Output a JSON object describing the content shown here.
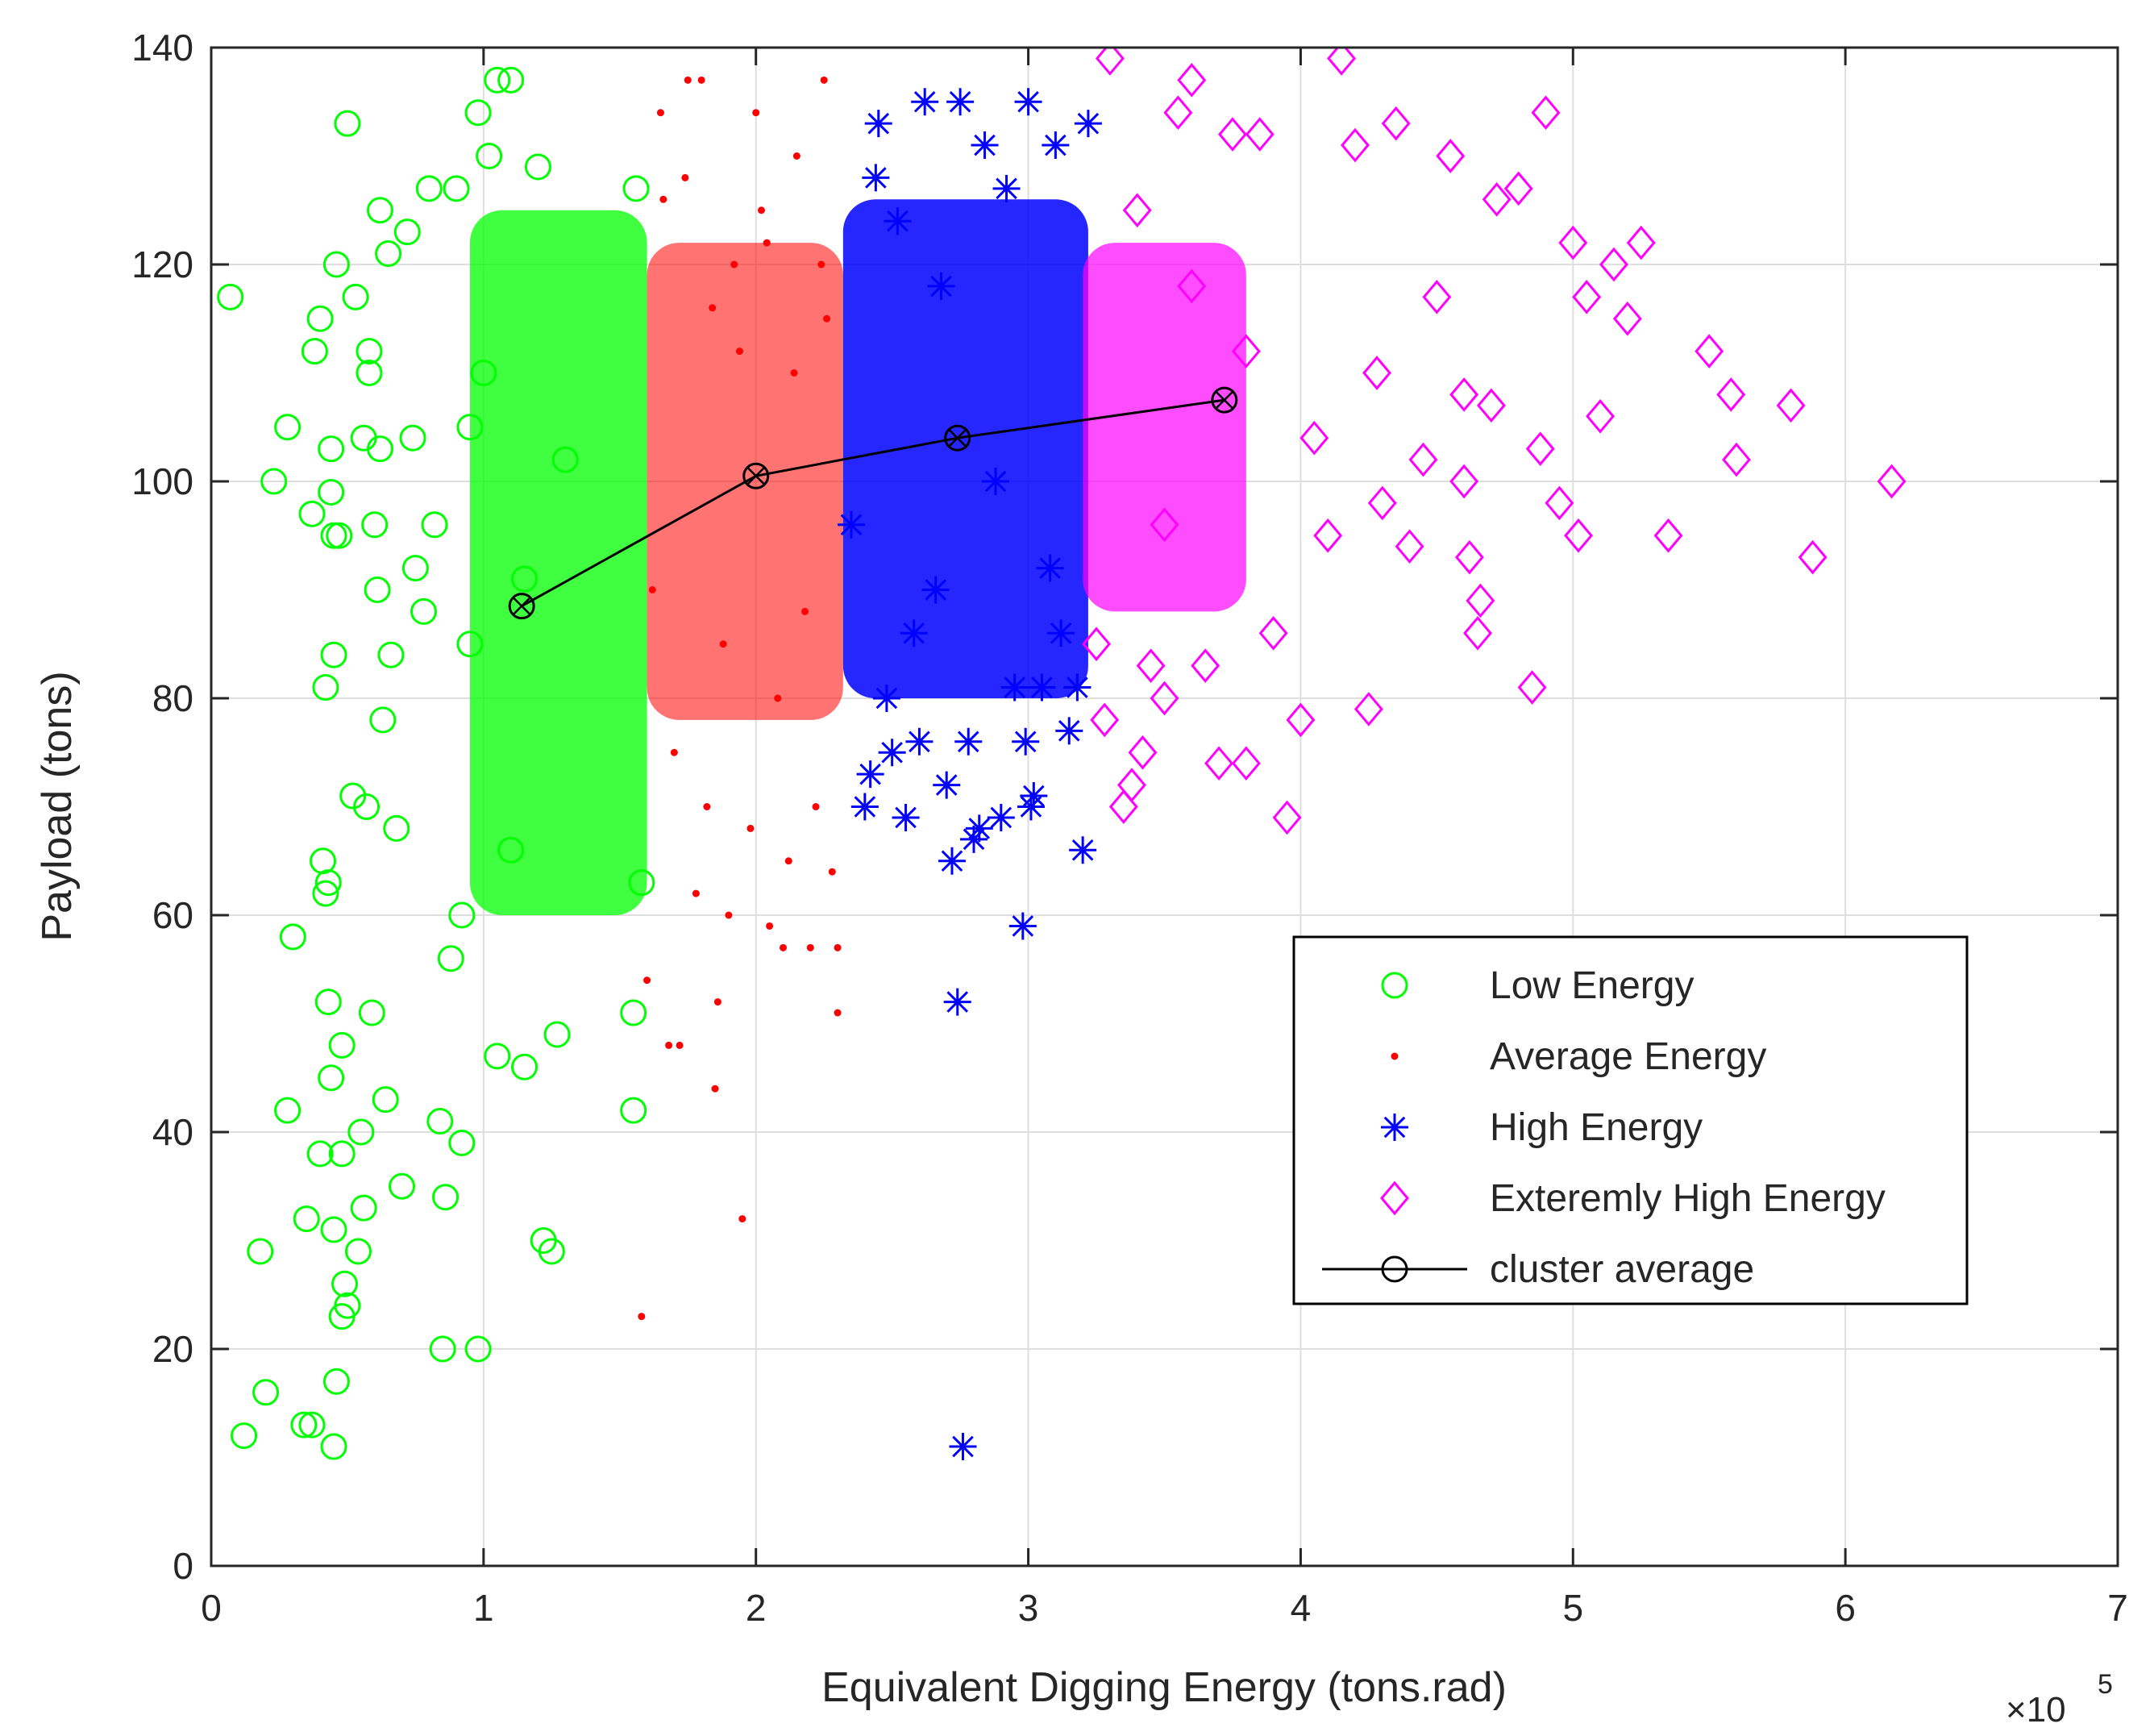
{
  "chart_data": {
    "type": "scatter",
    "title": "",
    "xlabel": "Equivalent Digging Energy (tons.rad)",
    "ylabel": "Payload (tons)",
    "x_multiplier_label": "×10",
    "x_multiplier_exponent": "5",
    "xlim": [
      0,
      7
    ],
    "ylim": [
      0,
      140
    ],
    "xticks": [
      0,
      1,
      2,
      3,
      4,
      5,
      6,
      7
    ],
    "yticks": [
      0,
      20,
      40,
      60,
      80,
      100,
      120,
      140
    ],
    "xtick_labels": [
      "0",
      "1",
      "2",
      "3",
      "4",
      "5",
      "6",
      "7"
    ],
    "ytick_labels": [
      "0",
      "20",
      "40",
      "60",
      "80",
      "100",
      "120",
      "140"
    ],
    "grid": true,
    "legend_position": "lower-right",
    "series": [
      {
        "name": "Low Energy",
        "marker": "circle",
        "color": "#00ff00",
        "points": [
          [
            0.07,
            117
          ],
          [
            0.12,
            12
          ],
          [
            0.18,
            29
          ],
          [
            0.2,
            16
          ],
          [
            0.23,
            100
          ],
          [
            0.28,
            105
          ],
          [
            0.28,
            42
          ],
          [
            0.3,
            58
          ],
          [
            0.34,
            13
          ],
          [
            0.35,
            32
          ],
          [
            0.37,
            97
          ],
          [
            0.37,
            13
          ],
          [
            0.38,
            112
          ],
          [
            0.4,
            115
          ],
          [
            0.4,
            38
          ],
          [
            0.41,
            65
          ],
          [
            0.42,
            81
          ],
          [
            0.42,
            62
          ],
          [
            0.43,
            63
          ],
          [
            0.43,
            52
          ],
          [
            0.44,
            103
          ],
          [
            0.44,
            99
          ],
          [
            0.44,
            45
          ],
          [
            0.45,
            84
          ],
          [
            0.45,
            95
          ],
          [
            0.45,
            11
          ],
          [
            0.45,
            31
          ],
          [
            0.46,
            120
          ],
          [
            0.46,
            17
          ],
          [
            0.47,
            95
          ],
          [
            0.48,
            23
          ],
          [
            0.48,
            38
          ],
          [
            0.48,
            48
          ],
          [
            0.49,
            26
          ],
          [
            0.5,
            133
          ],
          [
            0.5,
            24
          ],
          [
            0.52,
            71
          ],
          [
            0.53,
            117
          ],
          [
            0.54,
            29
          ],
          [
            0.55,
            40
          ],
          [
            0.56,
            33
          ],
          [
            0.56,
            104
          ],
          [
            0.57,
            70
          ],
          [
            0.58,
            112
          ],
          [
            0.58,
            110
          ],
          [
            0.59,
            51
          ],
          [
            0.6,
            96
          ],
          [
            0.61,
            90
          ],
          [
            0.62,
            125
          ],
          [
            0.62,
            103
          ],
          [
            0.63,
            78
          ],
          [
            0.64,
            43
          ],
          [
            0.65,
            121
          ],
          [
            0.66,
            84
          ],
          [
            0.68,
            68
          ],
          [
            0.7,
            35
          ],
          [
            0.72,
            123
          ],
          [
            0.74,
            104
          ],
          [
            0.75,
            92
          ],
          [
            0.78,
            88
          ],
          [
            0.8,
            127
          ],
          [
            0.82,
            96
          ],
          [
            0.84,
            41
          ],
          [
            0.85,
            20
          ],
          [
            0.86,
            34
          ],
          [
            0.88,
            56
          ],
          [
            0.9,
            127
          ],
          [
            0.92,
            39
          ],
          [
            0.95,
            85
          ],
          [
            0.98,
            20
          ],
          [
            0.98,
            134
          ],
          [
            1.02,
            130
          ],
          [
            1.05,
            137
          ],
          [
            1.1,
            137
          ],
          [
            1.15,
            91
          ],
          [
            1.2,
            129
          ],
          [
            1.22,
            30
          ],
          [
            1.25,
            29
          ],
          [
            1.27,
            49
          ],
          [
            1.55,
            42
          ],
          [
            1.55,
            51
          ],
          [
            1.56,
            127
          ],
          [
            1.58,
            63
          ],
          [
            0.92,
            60
          ],
          [
            0.95,
            105
          ],
          [
            1.0,
            110
          ],
          [
            1.05,
            47
          ],
          [
            1.1,
            66
          ],
          [
            1.15,
            46
          ],
          [
            1.3,
            102
          ]
        ]
      },
      {
        "name": "Average Energy",
        "marker": "dot",
        "color": "#ff0000",
        "points": [
          [
            1.58,
            23
          ],
          [
            1.6,
            54
          ],
          [
            1.65,
            134
          ],
          [
            1.68,
            48
          ],
          [
            1.72,
            48
          ],
          [
            1.75,
            137
          ],
          [
            1.8,
            137
          ],
          [
            1.85,
            44
          ],
          [
            1.86,
            52
          ],
          [
            1.9,
            60
          ],
          [
            1.95,
            32
          ],
          [
            2.0,
            134
          ],
          [
            2.05,
            59
          ],
          [
            2.1,
            57
          ],
          [
            2.2,
            57
          ],
          [
            2.25,
            137
          ],
          [
            2.3,
            51
          ],
          [
            2.3,
            57
          ],
          [
            1.62,
            90
          ],
          [
            1.7,
            75
          ],
          [
            1.78,
            62
          ],
          [
            1.82,
            70
          ],
          [
            1.88,
            85
          ],
          [
            1.92,
            120
          ],
          [
            1.98,
            68
          ],
          [
            2.02,
            125
          ],
          [
            2.08,
            80
          ],
          [
            2.12,
            65
          ],
          [
            2.15,
            130
          ],
          [
            2.18,
            88
          ],
          [
            2.22,
            70
          ],
          [
            2.26,
            115
          ],
          [
            2.28,
            64
          ],
          [
            1.66,
            126
          ],
          [
            1.74,
            128
          ],
          [
            1.84,
            116
          ],
          [
            1.94,
            112
          ],
          [
            2.04,
            122
          ],
          [
            2.14,
            110
          ],
          [
            2.24,
            120
          ]
        ]
      },
      {
        "name": "High Energy",
        "marker": "star",
        "color": "#0000ff",
        "points": [
          [
            2.4,
            70
          ],
          [
            2.42,
            73
          ],
          [
            2.45,
            133
          ],
          [
            2.5,
            75
          ],
          [
            2.55,
            69
          ],
          [
            2.6,
            76
          ],
          [
            2.62,
            135
          ],
          [
            2.7,
            72
          ],
          [
            2.72,
            65
          ],
          [
            2.74,
            52
          ],
          [
            2.75,
            135
          ],
          [
            2.76,
            11
          ],
          [
            2.78,
            76
          ],
          [
            2.8,
            67
          ],
          [
            2.82,
            68
          ],
          [
            2.9,
            69
          ],
          [
            2.95,
            81
          ],
          [
            2.98,
            59
          ],
          [
            2.99,
            76
          ],
          [
            3.0,
            135
          ],
          [
            3.01,
            70
          ],
          [
            3.02,
            71
          ],
          [
            3.05,
            81
          ],
          [
            3.1,
            131
          ],
          [
            3.15,
            77
          ],
          [
            3.18,
            81
          ],
          [
            3.2,
            66
          ],
          [
            3.22,
            133
          ],
          [
            2.44,
            128
          ],
          [
            2.52,
            124
          ],
          [
            2.58,
            86
          ],
          [
            2.66,
            90
          ],
          [
            2.84,
            131
          ],
          [
            2.92,
            127
          ],
          [
            3.08,
            92
          ],
          [
            3.12,
            86
          ],
          [
            2.35,
            96
          ],
          [
            2.48,
            80
          ],
          [
            2.68,
            118
          ],
          [
            2.88,
            100
          ]
        ]
      },
      {
        "name": "Exteremly High Energy",
        "marker": "diamond",
        "color": "#ff00ff",
        "points": [
          [
            3.25,
            85
          ],
          [
            3.28,
            78
          ],
          [
            3.3,
            139
          ],
          [
            3.35,
            70
          ],
          [
            3.38,
            72
          ],
          [
            3.42,
            75
          ],
          [
            3.45,
            83
          ],
          [
            3.5,
            80
          ],
          [
            3.55,
            134
          ],
          [
            3.6,
            137
          ],
          [
            3.65,
            83
          ],
          [
            3.7,
            74
          ],
          [
            3.75,
            132
          ],
          [
            3.8,
            74
          ],
          [
            3.85,
            132
          ],
          [
            3.9,
            86
          ],
          [
            3.95,
            69
          ],
          [
            4.0,
            78
          ],
          [
            4.1,
            95
          ],
          [
            4.15,
            139
          ],
          [
            4.2,
            131
          ],
          [
            4.25,
            79
          ],
          [
            4.3,
            98
          ],
          [
            4.35,
            133
          ],
          [
            4.4,
            94
          ],
          [
            4.5,
            117
          ],
          [
            4.55,
            130
          ],
          [
            4.6,
            100
          ],
          [
            4.62,
            93
          ],
          [
            4.65,
            86
          ],
          [
            4.66,
            89
          ],
          [
            4.7,
            107
          ],
          [
            4.72,
            126
          ],
          [
            4.8,
            127
          ],
          [
            4.85,
            81
          ],
          [
            4.88,
            103
          ],
          [
            4.9,
            134
          ],
          [
            4.95,
            98
          ],
          [
            5.0,
            122
          ],
          [
            5.02,
            95
          ],
          [
            5.05,
            117
          ],
          [
            5.1,
            106
          ],
          [
            5.15,
            120
          ],
          [
            5.2,
            115
          ],
          [
            5.25,
            122
          ],
          [
            5.35,
            95
          ],
          [
            5.5,
            112
          ],
          [
            5.58,
            108
          ],
          [
            5.6,
            102
          ],
          [
            5.8,
            107
          ],
          [
            5.88,
            93
          ],
          [
            6.17,
            100
          ],
          [
            3.4,
            125
          ],
          [
            3.6,
            118
          ],
          [
            3.8,
            112
          ],
          [
            4.05,
            104
          ],
          [
            4.28,
            110
          ],
          [
            4.45,
            102
          ],
          [
            4.6,
            108
          ],
          [
            3.5,
            96
          ]
        ]
      },
      {
        "name": "cluster average",
        "marker": "line-circle",
        "color": "#000000",
        "points": [
          [
            1.14,
            88.5
          ],
          [
            2.0,
            100.5
          ],
          [
            2.74,
            104
          ],
          [
            3.72,
            107.5
          ]
        ]
      }
    ]
  }
}
